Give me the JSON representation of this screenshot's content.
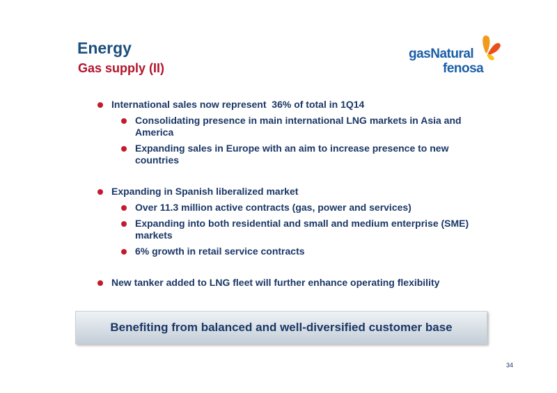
{
  "header": {
    "title": "Energy",
    "subtitle": "Gas supply (II)"
  },
  "logo": {
    "line1": "gasNatural",
    "line2": "fenosa"
  },
  "bullets": [
    {
      "text": "International sales now represent  36% of total in 1Q14",
      "sub": [
        "Consolidating presence in main international LNG markets in Asia and America",
        "Expanding sales in Europe with an aim to increase presence to new countries"
      ]
    },
    {
      "text": "Expanding in Spanish liberalized market",
      "sub": [
        "Over 11.3 million active contracts (gas, power and services)",
        "Expanding into both residential and small and medium enterprise (SME) markets",
        "6% growth in retail service contracts"
      ]
    },
    {
      "text": "New tanker added to LNG fleet will further enhance operating flexibility",
      "sub": []
    }
  ],
  "callout": "Benefiting from balanced and well-diversified customer base",
  "page_number": "34"
}
